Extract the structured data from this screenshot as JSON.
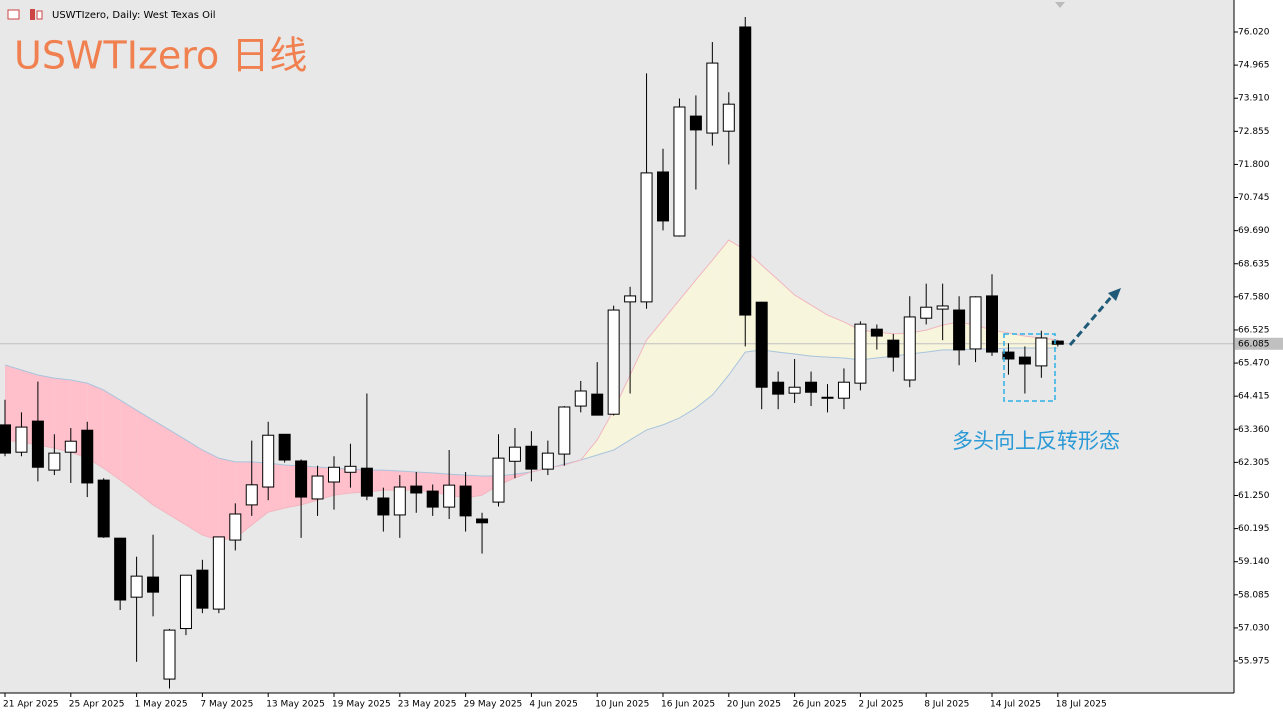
{
  "chart_data": {
    "type": "candlestick",
    "title": "USWTIzero, Daily: West Texas Oil",
    "watermark": "USWTIzero 日线",
    "annotation": "多头向上反转形态",
    "categories": [
      "21 Apr 2025",
      null,
      null,
      null,
      "25 Apr 2025",
      null,
      null,
      null,
      "1 May 2025",
      null,
      null,
      null,
      "7 May 2025",
      null,
      null,
      null,
      "13 May 2025",
      null,
      null,
      null,
      "19 May 2025",
      null,
      null,
      null,
      "23 May 2025",
      null,
      null,
      null,
      "29 May 2025",
      null,
      null,
      null,
      "4 Jun 2025",
      null,
      null,
      null,
      "10 Jun 2025",
      null,
      null,
      null,
      "16 Jun 2025",
      null,
      null,
      null,
      "20 Jun 2025",
      null,
      null,
      null,
      "26 Jun 2025",
      null,
      null,
      null,
      "2 Jul 2025",
      null,
      null,
      null,
      "8 Jul 2025",
      null,
      null,
      null,
      "14 Jul 2025",
      null,
      null,
      null,
      "18 Jul 2025"
    ],
    "open": [
      63.5,
      62.63,
      63.62,
      62.06,
      62.63,
      63.33,
      61.74,
      59.89,
      58.01,
      58.65,
      55.4,
      57.01,
      58.87,
      57.63,
      59.83,
      60.95,
      61.52,
      63.2,
      62.35,
      61.14,
      61.68,
      61.99,
      62.12,
      61.17,
      60.63,
      61.55,
      61.39,
      60.88,
      61.55,
      60.5,
      61.04,
      62.34,
      62.82,
      62.09,
      62.57,
      64.1,
      64.48,
      63.84,
      67.42,
      67.42,
      71.56,
      69.52,
      73.34,
      72.8,
      72.86,
      76.18,
      67.41,
      64.86,
      64.51,
      64.86,
      64.38,
      64.35,
      64.83,
      66.55,
      66.2,
      64.93,
      66.9,
      67.19,
      67.16,
      65.92,
      67.61,
      65.82,
      65.66,
      65.38,
      66.17
    ],
    "high": [
      64.3,
      63.9,
      64.88,
      63.2,
      63.4,
      63.6,
      61.8,
      59.9,
      59.3,
      60.0,
      57.0,
      58.71,
      59.2,
      59.93,
      61.0,
      63.0,
      63.6,
      63.2,
      62.4,
      62.2,
      62.5,
      62.9,
      64.5,
      61.5,
      61.9,
      62.0,
      61.6,
      62.7,
      62.0,
      60.7,
      63.2,
      63.4,
      63.3,
      63.0,
      64.1,
      64.9,
      65.5,
      67.3,
      67.9,
      74.7,
      72.3,
      73.9,
      74.0,
      75.7,
      74.1,
      76.5,
      67.41,
      65.2,
      65.6,
      65.2,
      64.8,
      65.3,
      66.8,
      66.7,
      66.4,
      67.6,
      68.0,
      68.0,
      67.6,
      67.6,
      68.3,
      66.1,
      66.0,
      66.5,
      66.2
    ],
    "low": [
      62.5,
      62.5,
      61.7,
      61.9,
      61.65,
      61.2,
      59.9,
      57.6,
      55.95,
      57.4,
      55.1,
      56.8,
      57.5,
      57.5,
      59.5,
      60.6,
      61.1,
      62.3,
      59.9,
      60.6,
      60.8,
      61.5,
      61.1,
      60.1,
      59.9,
      60.7,
      60.6,
      60.5,
      60.1,
      59.4,
      60.9,
      61.8,
      61.7,
      61.9,
      62.2,
      63.9,
      63.8,
      63.8,
      64.5,
      67.2,
      69.7,
      69.5,
      71.0,
      72.4,
      71.8,
      66.0,
      64.0,
      64.0,
      64.2,
      64.1,
      63.9,
      64.0,
      64.6,
      65.9,
      65.2,
      64.7,
      66.7,
      66.2,
      65.4,
      65.5,
      65.7,
      65.1,
      64.5,
      65.0,
      66.0
    ],
    "close": [
      62.6,
      63.43,
      62.15,
      62.6,
      62.98,
      61.65,
      59.93,
      57.92,
      58.68,
      58.17,
      56.96,
      58.71,
      57.66,
      59.93,
      60.66,
      61.59,
      63.17,
      62.38,
      61.2,
      61.87,
      62.15,
      62.18,
      61.23,
      60.63,
      61.52,
      61.33,
      60.88,
      61.58,
      60.6,
      60.38,
      62.44,
      62.79,
      62.09,
      62.6,
      64.07,
      64.58,
      63.81,
      67.16,
      67.61,
      71.53,
      70.0,
      73.63,
      72.9,
      75.03,
      73.72,
      67.0,
      64.7,
      64.48,
      64.7,
      64.54,
      64.35,
      64.86,
      66.71,
      66.33,
      65.66,
      66.94,
      67.25,
      67.29,
      65.89,
      67.58,
      65.82,
      65.6,
      65.44,
      66.27,
      66.07
    ],
    "up_color": "#ffffff",
    "down_color": "#000000",
    "span_a": {
      "color": "#a9c4dc",
      "values": [
        65.41,
        65.25,
        65.09,
        64.99,
        64.93,
        64.83,
        64.61,
        64.29,
        63.97,
        63.65,
        63.34,
        63.02,
        62.7,
        62.44,
        62.32,
        62.32,
        62.28,
        62.22,
        62.19,
        62.16,
        62.12,
        62.09,
        62.06,
        62.06,
        62.03,
        62.0,
        61.97,
        61.93,
        61.9,
        61.87,
        61.87,
        61.93,
        62.0,
        62.12,
        62.25,
        62.38,
        62.54,
        62.7,
        63.02,
        63.34,
        63.5,
        63.72,
        64.04,
        64.45,
        65.09,
        65.82,
        65.89,
        65.82,
        65.76,
        65.69,
        65.66,
        65.63,
        65.57,
        65.63,
        65.69,
        65.76,
        65.82,
        65.89,
        65.89,
        65.92,
        65.92,
        65.95,
        65.95,
        65.95,
        65.95
      ]
    },
    "span_b": {
      "color": "#f2b6c0",
      "values": [
        63.02,
        62.95,
        62.86,
        62.76,
        62.63,
        62.44,
        62.12,
        61.74,
        61.36,
        60.95,
        60.63,
        60.31,
        59.99,
        59.83,
        59.89,
        60.31,
        60.72,
        60.85,
        60.95,
        61.1,
        61.26,
        61.33,
        61.36,
        61.42,
        61.42,
        61.42,
        61.36,
        61.26,
        61.17,
        61.26,
        61.58,
        61.81,
        62.0,
        62.12,
        62.22,
        62.38,
        63.02,
        63.97,
        65.09,
        66.2,
        66.84,
        67.48,
        68.12,
        68.75,
        69.39,
        69.07,
        68.59,
        68.12,
        67.64,
        67.32,
        67.0,
        66.78,
        66.52,
        66.46,
        66.4,
        66.43,
        66.52,
        66.68,
        66.78,
        66.68,
        66.52,
        66.43,
        66.33,
        66.27,
        66.2
      ]
    },
    "cloud_colors": {
      "a_above": "#ffc0cb",
      "b_above": "#f7f5dc"
    },
    "last_price": 66.085,
    "ylim": [
      54.956,
      77.04
    ],
    "yticks": [
      {
        "value": 55.975,
        "label": "55.975"
      },
      {
        "value": 57.03,
        "label": "57.030"
      },
      {
        "value": 58.085,
        "label": "58.085"
      },
      {
        "value": 59.14,
        "label": "59.140"
      },
      {
        "value": 60.195,
        "label": "60.195"
      },
      {
        "value": 61.25,
        "label": "61.250"
      },
      {
        "value": 62.305,
        "label": "62.305"
      },
      {
        "value": 63.36,
        "label": "63.360"
      },
      {
        "value": 64.415,
        "label": "64.415"
      },
      {
        "value": 65.47,
        "label": "65.470"
      },
      {
        "value": 66.525,
        "label": "66.525"
      },
      {
        "value": 67.58,
        "label": "67.580"
      },
      {
        "value": 68.635,
        "label": "68.635"
      },
      {
        "value": 69.69,
        "label": "69.690"
      },
      {
        "value": 70.745,
        "label": "70.745"
      },
      {
        "value": 71.8,
        "label": "71.800"
      },
      {
        "value": 72.855,
        "label": "72.855"
      },
      {
        "value": 73.91,
        "label": "73.910"
      },
      {
        "value": 74.965,
        "label": "74.965"
      },
      {
        "value": 76.02,
        "label": "76.020"
      }
    ]
  }
}
